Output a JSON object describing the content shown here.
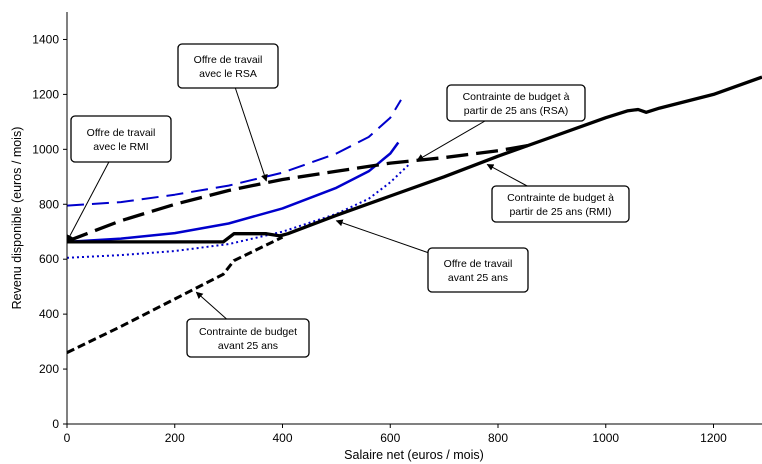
{
  "chart_data": {
    "type": "line",
    "title": "",
    "xlabel": "Salaire net (euros / mois)",
    "ylabel": "Revenu disponible (euros / mois)",
    "xlim": [
      0,
      1290
    ],
    "ylim": [
      0,
      1500
    ],
    "x_ticks": [
      "0",
      "200",
      "400",
      "600",
      "800",
      "1000",
      "1200"
    ],
    "y_ticks": [
      "0",
      "200",
      "400",
      "600",
      "800",
      "1000",
      "1200",
      "1400"
    ],
    "grid": false,
    "series": [
      {
        "key": "offre_rmi",
        "color": "#0000CC",
        "dash": "solid",
        "x": [
          0,
          100,
          200,
          300,
          400,
          500,
          560,
          600,
          615
        ],
        "y": [
          663,
          675,
          695,
          730,
          785,
          860,
          920,
          985,
          1025
        ]
      },
      {
        "key": "offre_rsa",
        "color": "#0000CC",
        "dash": "dashed",
        "x": [
          0,
          100,
          200,
          300,
          400,
          500,
          560,
          600,
          620
        ],
        "y": [
          795,
          808,
          835,
          868,
          915,
          985,
          1045,
          1115,
          1180
        ]
      },
      {
        "key": "offre_avant25",
        "color": "#0000CC",
        "dash": "dotted",
        "x": [
          0,
          100,
          200,
          300,
          400,
          500,
          560,
          600,
          635
        ],
        "y": [
          605,
          615,
          630,
          655,
          700,
          765,
          820,
          880,
          945
        ]
      },
      {
        "key": "contrainte_rmi",
        "color": "#000000",
        "dash": "solid",
        "x": [
          0,
          290,
          310,
          370,
          395,
          410,
          500,
          600,
          700,
          800,
          900,
          1000,
          1040,
          1060,
          1075,
          1100,
          1200,
          1290
        ],
        "y": [
          663,
          663,
          693,
          693,
          685,
          693,
          760,
          830,
          900,
          975,
          1045,
          1115,
          1140,
          1145,
          1135,
          1150,
          1200,
          1263
        ]
      },
      {
        "key": "contrainte_rsa",
        "color": "#000000",
        "dash": "longdash",
        "x": [
          0,
          100,
          200,
          300,
          400,
          500,
          600,
          700,
          800,
          860
        ],
        "y": [
          665,
          740,
          800,
          850,
          890,
          920,
          950,
          970,
          995,
          1015
        ]
      },
      {
        "key": "contrainte_avant25",
        "color": "#000000",
        "dash": "shortdash",
        "x": [
          0,
          100,
          200,
          290,
          310,
          400
        ],
        "y": [
          260,
          355,
          455,
          545,
          595,
          680
        ]
      }
    ],
    "annotations": [
      {
        "key": "a_rsa",
        "lines": [
          "Offre de travail",
          "avec le RSA"
        ]
      },
      {
        "key": "a_rmi",
        "lines": [
          "Offre de travail",
          "avec le RMI"
        ]
      },
      {
        "key": "a_c_rsa",
        "lines": [
          "Contrainte de budget à",
          "partir de 25 ans (RSA)"
        ]
      },
      {
        "key": "a_c_rmi",
        "lines": [
          "Contrainte de budget à",
          "partir de 25 ans (RMI)"
        ]
      },
      {
        "key": "a_avant25",
        "lines": [
          "Offre de travail",
          "avant 25 ans"
        ]
      },
      {
        "key": "a_c_avant25",
        "lines": [
          "Contrainte de budget",
          "avant 25 ans"
        ]
      }
    ]
  }
}
